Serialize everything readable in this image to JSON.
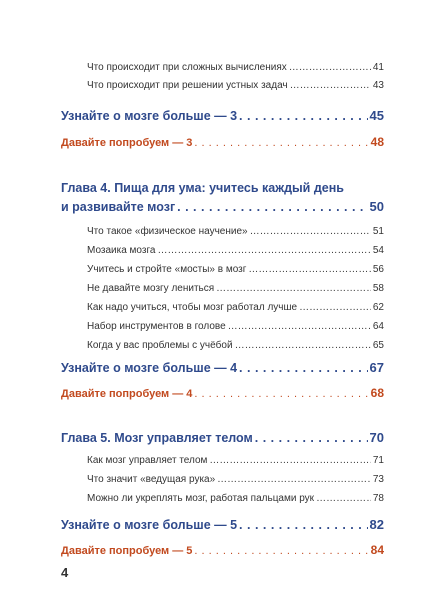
{
  "toc": {
    "s1": {
      "text": "Что происходит при сложных вычислениях",
      "page": "41"
    },
    "s2": {
      "text": "Что происходит при решении устных задач",
      "page": "43"
    },
    "more3": {
      "text": "Узнайте о мозге больше — 3",
      "page": "45"
    },
    "try3": {
      "text": "Давайте попробуем — 3",
      "page": "48"
    },
    "ch4": {
      "line1": "Глава 4. Пища для ума: учитесь каждый день",
      "line2": "и развивайте мозг",
      "page": "50"
    },
    "c4s": [
      {
        "text": "Что такое «физическое научение»",
        "page": "51"
      },
      {
        "text": "Мозаика мозга",
        "page": "54"
      },
      {
        "text": "Учитесь и стройте «мосты» в мозг",
        "page": "56"
      },
      {
        "text": "Не давайте мозгу лениться",
        "page": "58"
      },
      {
        "text": "Как надо учиться, чтобы мозг работал лучше",
        "page": "62"
      },
      {
        "text": "Набор инструментов в голове",
        "page": "64"
      },
      {
        "text": "Когда у вас проблемы с учёбой",
        "page": "65"
      }
    ],
    "more4": {
      "text": "Узнайте о мозге больше — 4",
      "page": "67"
    },
    "try4": {
      "text": "Давайте попробуем — 4",
      "page": "68"
    },
    "ch5": {
      "text": "Глава 5. Мозг управляет телом",
      "page": "70"
    },
    "c5s": [
      {
        "text": "Как мозг управляет телом",
        "page": "71"
      },
      {
        "text": "Что значит «ведущая рука»",
        "page": "73"
      },
      {
        "text": "Можно ли укреплять мозг, работая пальцами рук",
        "page": "78"
      }
    ],
    "more5": {
      "text": "Узнайте о мозге больше — 5",
      "page": "82"
    },
    "try5": {
      "text": "Давайте попробуем — 5",
      "page": "84"
    }
  },
  "page_number": "4"
}
